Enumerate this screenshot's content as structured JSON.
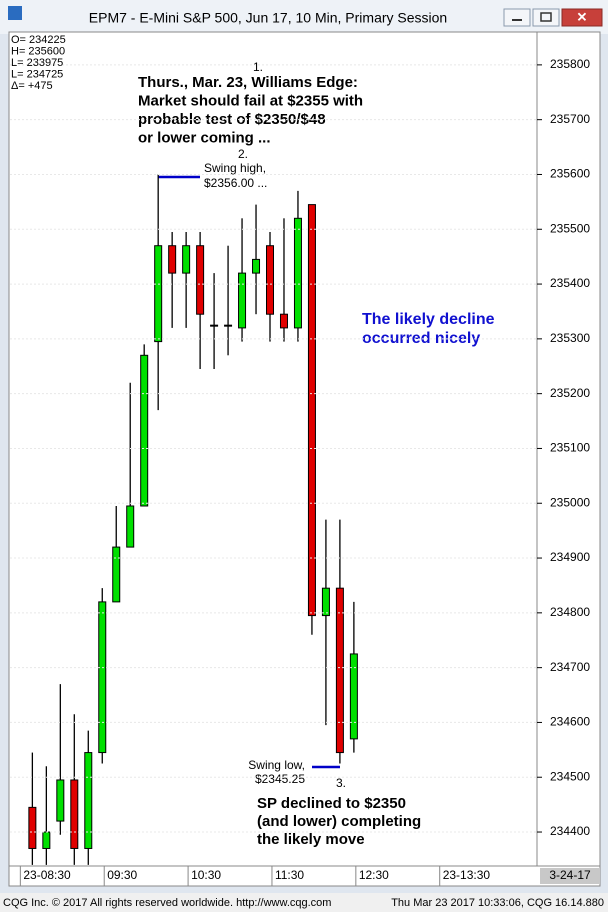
{
  "window_title": "EPM7 - E-Mini S&P 500, Jun 17, 10 Min, Primary Session",
  "footer": {
    "left": "CQG Inc. © 2017 All rights reserved worldwide.  http://www.cqg.com",
    "right": "Thu Mar 23 2017 10:33:06, CQG 16.14.880"
  },
  "chart_data": {
    "type": "candlestick",
    "info_lines": [
      "O= 234225",
      "H= 235600",
      "L= 233975",
      "L= 234725",
      "Δ=     +475"
    ],
    "up_color": "#00e000",
    "down_color": "#e00000",
    "open": [
      234445,
      234370,
      234420,
      234495,
      234370,
      234545,
      234820,
      234920,
      234995,
      235295,
      235470,
      235420,
      235470,
      235325,
      235325,
      235320,
      235420,
      235470,
      235345,
      235320,
      235545,
      234795,
      234845,
      234570
    ],
    "high": [
      234545,
      234520,
      234670,
      234615,
      234585,
      234845,
      234995,
      235220,
      235290,
      235600,
      235495,
      235495,
      235495,
      235420,
      235470,
      235520,
      235545,
      235495,
      235520,
      235570,
      235545,
      234970,
      234970,
      234820
    ],
    "low": [
      234340,
      234340,
      234395,
      234340,
      234340,
      234525,
      234820,
      234920,
      234995,
      235170,
      235320,
      235320,
      235245,
      235245,
      235270,
      235295,
      235345,
      235295,
      235295,
      235295,
      234760,
      234595,
      234525,
      234545
    ],
    "close": [
      234370,
      234400,
      234495,
      234370,
      234545,
      234820,
      234920,
      234995,
      235270,
      235470,
      235420,
      235470,
      235345,
      235325,
      235325,
      235420,
      235445,
      235345,
      235320,
      235520,
      234795,
      234845,
      234545,
      234725
    ],
    "ylim": [
      234338,
      235860
    ],
    "yticks": [
      234400,
      234500,
      234600,
      234700,
      234800,
      234900,
      235000,
      235100,
      235200,
      235300,
      235400,
      235500,
      235600,
      235700,
      235800
    ],
    "xlim": [
      -1.6,
      36.1
    ],
    "xticks": [
      {
        "value": -0.86,
        "label": "23-08:30"
      },
      {
        "value": 5.14,
        "label": "09:30"
      },
      {
        "value": 11.14,
        "label": "10:30"
      },
      {
        "value": 17.14,
        "label": "11:30"
      },
      {
        "value": 23.14,
        "label": "12:30"
      },
      {
        "value": 29.14,
        "label": "23-13:30"
      }
    ],
    "date_label": "3-24-17",
    "annotations": {
      "note_1": {
        "number": "1.",
        "lines": [
          "Thurs., Mar. 23, Williams Edge:",
          "Market should fail at $2355 with",
          "probable test of $2350/$48",
          "or lower coming ..."
        ]
      },
      "note_2": {
        "number": "2.",
        "lines": [
          "Swing high,",
          "$2356.00 ..."
        ]
      },
      "note_3": {
        "number": "3.",
        "lines": [
          "Swing low,",
          "$2345.25"
        ]
      },
      "note_4": {
        "lines": [
          "SP declined to $2350",
          "(and lower) completing",
          "the likely move"
        ]
      },
      "note_5": {
        "lines": [
          "The likely decline",
          "occurred nicely"
        ]
      }
    }
  }
}
